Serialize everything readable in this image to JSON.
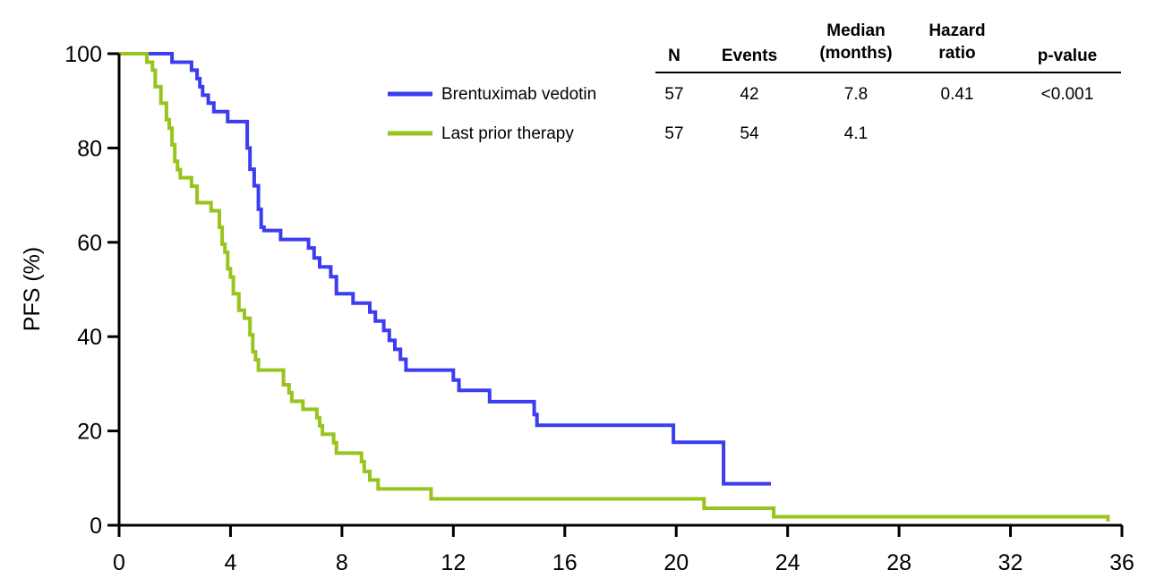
{
  "chart_data": {
    "type": "line",
    "ylabel": "PFS (%)",
    "xlabel": "",
    "xlim": [
      0,
      36
    ],
    "ylim": [
      0,
      100
    ],
    "x_ticks": [
      0,
      4,
      8,
      12,
      16,
      20,
      24,
      28,
      32,
      36
    ],
    "y_ticks": [
      0,
      20,
      40,
      60,
      80,
      100
    ],
    "step": true,
    "series": [
      {
        "name": "Brentuximab vedotin",
        "color": "#3c3cf0",
        "points": [
          [
            0,
            100
          ],
          [
            1.9,
            100
          ],
          [
            1.9,
            98.2
          ],
          [
            2.6,
            98.2
          ],
          [
            2.6,
            96.5
          ],
          [
            2.8,
            96.5
          ],
          [
            2.8,
            94.7
          ],
          [
            2.9,
            94.7
          ],
          [
            2.9,
            93
          ],
          [
            3.0,
            93
          ],
          [
            3.0,
            91.2
          ],
          [
            3.2,
            91.2
          ],
          [
            3.2,
            89.5
          ],
          [
            3.4,
            89.5
          ],
          [
            3.4,
            87.7
          ],
          [
            3.9,
            87.7
          ],
          [
            3.9,
            85.6
          ],
          [
            4.6,
            85.6
          ],
          [
            4.6,
            80
          ],
          [
            4.7,
            80
          ],
          [
            4.7,
            75.5
          ],
          [
            4.85,
            75.5
          ],
          [
            4.85,
            72
          ],
          [
            5.0,
            72
          ],
          [
            5.0,
            67
          ],
          [
            5.1,
            67
          ],
          [
            5.1,
            63.2
          ],
          [
            5.2,
            63.2
          ],
          [
            5.2,
            62.5
          ],
          [
            5.8,
            62.5
          ],
          [
            5.8,
            60.6
          ],
          [
            6.8,
            60.6
          ],
          [
            6.8,
            58.8
          ],
          [
            7.0,
            58.8
          ],
          [
            7.0,
            56.7
          ],
          [
            7.2,
            56.7
          ],
          [
            7.2,
            54.8
          ],
          [
            7.6,
            54.8
          ],
          [
            7.6,
            52.7
          ],
          [
            7.8,
            52.7
          ],
          [
            7.8,
            49.1
          ],
          [
            8.4,
            49.1
          ],
          [
            8.4,
            47.1
          ],
          [
            9.0,
            47.1
          ],
          [
            9.0,
            45.2
          ],
          [
            9.2,
            45.2
          ],
          [
            9.2,
            43.3
          ],
          [
            9.5,
            43.3
          ],
          [
            9.5,
            41.3
          ],
          [
            9.7,
            41.3
          ],
          [
            9.7,
            39.2
          ],
          [
            9.9,
            39.2
          ],
          [
            9.9,
            37.3
          ],
          [
            10.1,
            37.3
          ],
          [
            10.1,
            35.2
          ],
          [
            10.3,
            35.2
          ],
          [
            10.3,
            32.9
          ],
          [
            12.0,
            32.9
          ],
          [
            12.0,
            30.8
          ],
          [
            12.2,
            30.8
          ],
          [
            12.2,
            28.6
          ],
          [
            13.3,
            28.6
          ],
          [
            13.3,
            26.2
          ],
          [
            14.9,
            26.2
          ],
          [
            14.9,
            23.5
          ],
          [
            15.0,
            23.5
          ],
          [
            15.0,
            21.2
          ],
          [
            19.9,
            21.2
          ],
          [
            19.9,
            17.6
          ],
          [
            21.7,
            17.6
          ],
          [
            21.7,
            8.8
          ],
          [
            23.4,
            8.8
          ]
        ]
      },
      {
        "name": "Last prior therapy",
        "color": "#97c41d",
        "points": [
          [
            0,
            100
          ],
          [
            1.0,
            100
          ],
          [
            1.0,
            98.2
          ],
          [
            1.2,
            98.2
          ],
          [
            1.2,
            96.5
          ],
          [
            1.3,
            96.5
          ],
          [
            1.3,
            93
          ],
          [
            1.5,
            93
          ],
          [
            1.5,
            89.5
          ],
          [
            1.7,
            89.5
          ],
          [
            1.7,
            86
          ],
          [
            1.8,
            86
          ],
          [
            1.8,
            84.2
          ],
          [
            1.9,
            84.2
          ],
          [
            1.9,
            80.7
          ],
          [
            2.0,
            80.7
          ],
          [
            2.0,
            77.2
          ],
          [
            2.1,
            77.2
          ],
          [
            2.1,
            75.4
          ],
          [
            2.2,
            75.4
          ],
          [
            2.2,
            73.7
          ],
          [
            2.6,
            73.7
          ],
          [
            2.6,
            71.9
          ],
          [
            2.8,
            71.9
          ],
          [
            2.8,
            68.4
          ],
          [
            3.3,
            68.4
          ],
          [
            3.3,
            66.7
          ],
          [
            3.6,
            66.7
          ],
          [
            3.6,
            63.2
          ],
          [
            3.7,
            63.2
          ],
          [
            3.7,
            59.6
          ],
          [
            3.8,
            59.6
          ],
          [
            3.8,
            57.9
          ],
          [
            3.9,
            57.9
          ],
          [
            3.9,
            54.4
          ],
          [
            4.0,
            54.4
          ],
          [
            4.0,
            52.6
          ],
          [
            4.1,
            52.6
          ],
          [
            4.1,
            49.1
          ],
          [
            4.3,
            49.1
          ],
          [
            4.3,
            45.6
          ],
          [
            4.5,
            45.6
          ],
          [
            4.5,
            43.9
          ],
          [
            4.7,
            43.9
          ],
          [
            4.7,
            40.4
          ],
          [
            4.8,
            40.4
          ],
          [
            4.8,
            36.8
          ],
          [
            4.9,
            36.8
          ],
          [
            4.9,
            35.1
          ],
          [
            5.0,
            35.1
          ],
          [
            5.0,
            32.9
          ],
          [
            5.9,
            32.9
          ],
          [
            5.9,
            29.8
          ],
          [
            6.1,
            29.8
          ],
          [
            6.1,
            28.1
          ],
          [
            6.2,
            28.1
          ],
          [
            6.2,
            26.3
          ],
          [
            6.6,
            26.3
          ],
          [
            6.6,
            24.6
          ],
          [
            7.1,
            24.6
          ],
          [
            7.1,
            22.8
          ],
          [
            7.2,
            22.8
          ],
          [
            7.2,
            21.1
          ],
          [
            7.3,
            21.1
          ],
          [
            7.3,
            19.3
          ],
          [
            7.7,
            19.3
          ],
          [
            7.7,
            17.5
          ],
          [
            7.8,
            17.5
          ],
          [
            7.8,
            15.3
          ],
          [
            8.7,
            15.3
          ],
          [
            8.7,
            13.5
          ],
          [
            8.8,
            13.5
          ],
          [
            8.8,
            11.4
          ],
          [
            9.0,
            11.4
          ],
          [
            9.0,
            9.6
          ],
          [
            9.3,
            9.6
          ],
          [
            9.3,
            7.7
          ],
          [
            11.2,
            7.7
          ],
          [
            11.2,
            5.6
          ],
          [
            21.0,
            5.6
          ],
          [
            21.0,
            3.6
          ],
          [
            23.5,
            3.6
          ],
          [
            23.5,
            1.8
          ],
          [
            35.5,
            1.8
          ],
          [
            35.5,
            0.8
          ]
        ]
      }
    ]
  },
  "summary_table": {
    "headers": [
      [
        "N"
      ],
      [
        "Events"
      ],
      [
        "Median",
        "(months)"
      ],
      [
        "Hazard",
        "ratio"
      ],
      [
        "p-value"
      ]
    ],
    "rows": [
      {
        "label": "Brentuximab vedotin",
        "color": "#3c3cf0",
        "cells": [
          "57",
          "42",
          "7.8",
          "0.41",
          "<0.001"
        ]
      },
      {
        "label": "Last prior therapy",
        "color": "#97c41d",
        "cells": [
          "57",
          "54",
          "4.1",
          "",
          ""
        ]
      }
    ]
  }
}
